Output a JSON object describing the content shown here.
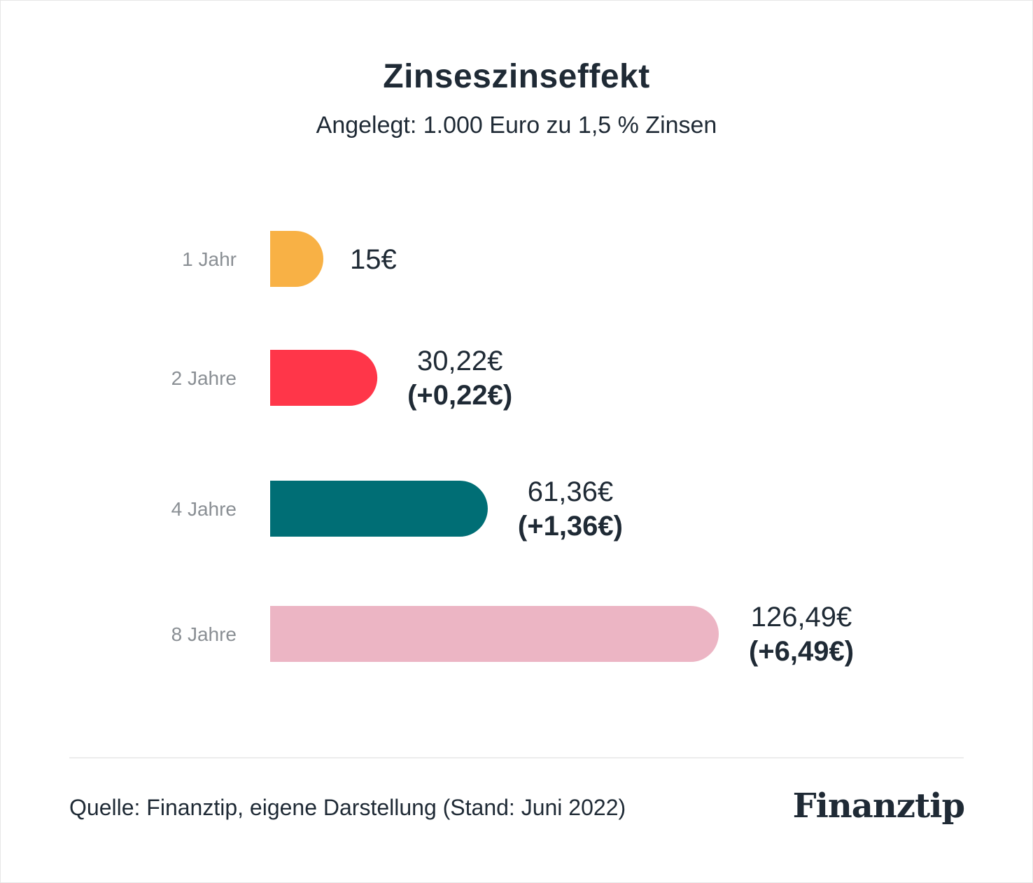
{
  "title": "Zinseszinseffekt",
  "subtitle": "Angelegt: 1.000 Euro zu 1,5 % Zinsen",
  "source": "Quelle: Finanztip, eigene Darstellung (Stand: Juni 2022)",
  "logo": "Finanztip",
  "colors": {
    "text": "#1f2a35",
    "category_label": "#8a8f94",
    "divider": "#ececec"
  },
  "chart_data": {
    "type": "bar",
    "orientation": "horizontal",
    "categories": [
      "1 Jahr",
      "2 Jahre",
      "4 Jahre",
      "8 Jahre"
    ],
    "values": [
      15,
      30.22,
      61.36,
      126.49
    ],
    "value_labels": [
      "15€",
      "30,22€",
      "61,36€",
      "126,49€"
    ],
    "extra_labels": [
      "",
      "(+0,22€)",
      "(+1,36€)",
      "(+6,49€)"
    ],
    "bar_colors": [
      "#f8b145",
      "#ff3649",
      "#006e75",
      "#ecb5c4"
    ],
    "title": "Zinseszinseffekt",
    "xlabel": "",
    "ylabel": "",
    "grid": false,
    "legend": "none"
  }
}
